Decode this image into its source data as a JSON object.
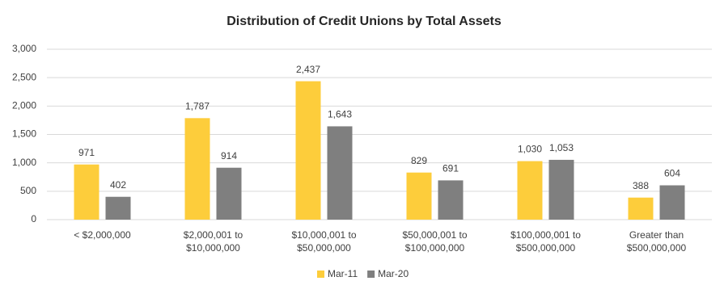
{
  "chart_data": {
    "type": "bar",
    "title": "Distribution of Credit Unions by Total Assets",
    "categories": [
      [
        "< $2,000,000"
      ],
      [
        "$2,000,001 to",
        "$10,000,000"
      ],
      [
        "$10,000,001 to",
        "$50,000,000"
      ],
      [
        "$50,000,001 to",
        "$100,000,000"
      ],
      [
        "$100,000,001 to",
        "$500,000,000"
      ],
      [
        "Greater than",
        "$500,000,000"
      ]
    ],
    "series": [
      {
        "name": "Mar-11",
        "color": "#fdcd3b",
        "values": [
          971,
          1787,
          2437,
          829,
          1030,
          388
        ],
        "value_labels": [
          "971",
          "1,787",
          "2,437",
          "829",
          "1,030",
          "388"
        ]
      },
      {
        "name": "Mar-20",
        "color": "#7f7f7f",
        "values": [
          402,
          914,
          1643,
          691,
          1053,
          604
        ],
        "value_labels": [
          "402",
          "914",
          "1,643",
          "691",
          "1,053",
          "604"
        ]
      }
    ],
    "ylim": [
      0,
      3000
    ],
    "yticks": [
      0,
      500,
      {
        "value": 1000,
        "label": "1,000"
      },
      {
        "value": 1500,
        "label": "1,500"
      },
      {
        "value": 2000,
        "label": "2,000"
      },
      {
        "value": 2500,
        "label": "2,500"
      },
      {
        "value": 3000,
        "label": "3,000"
      }
    ],
    "grid": true,
    "legend": "bottom"
  }
}
